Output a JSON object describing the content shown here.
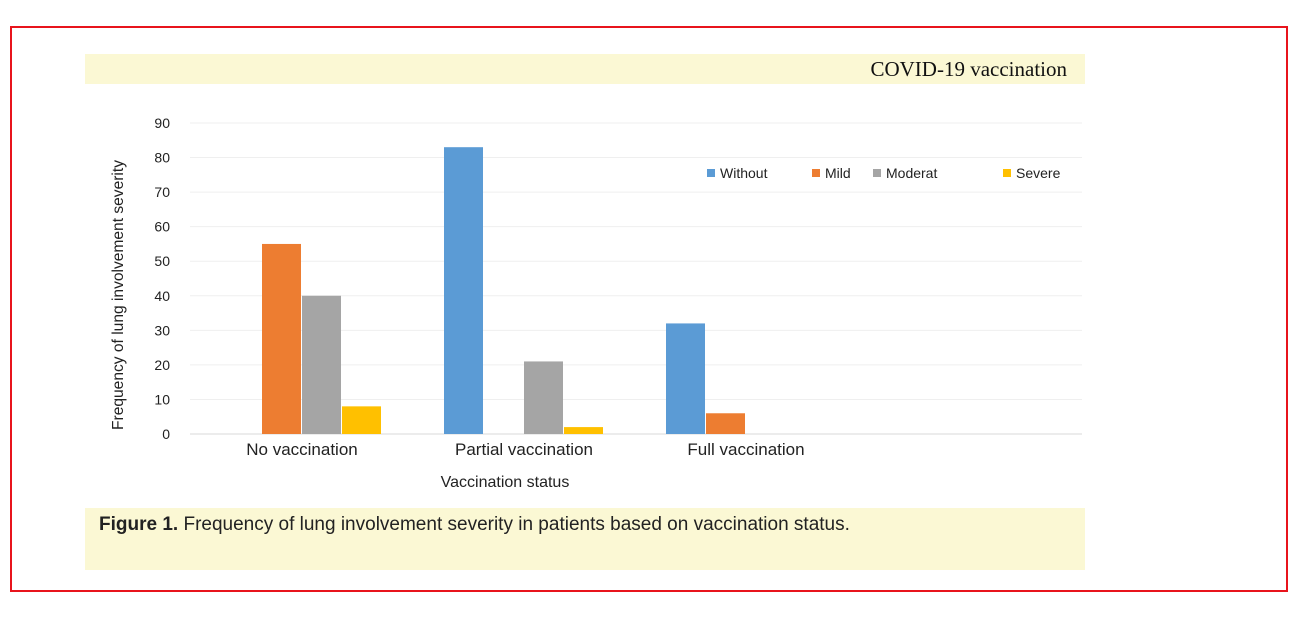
{
  "header": {
    "title": "COVID-19 vaccination"
  },
  "caption": {
    "label": "Figure 1.",
    "text": "Frequency of lung involvement severity in patients based on vaccination  status."
  },
  "colors": {
    "frame": "#e8141c",
    "band": "#fbf8d4"
  },
  "chart_data": {
    "type": "bar",
    "categories": [
      "No vaccination",
      "Partial vaccination",
      "Full vaccination"
    ],
    "series": [
      {
        "name": "Without",
        "color": "#5b9bd5",
        "values": [
          0,
          83,
          32
        ]
      },
      {
        "name": "Mild",
        "color": "#ed7d31",
        "values": [
          55,
          0,
          6
        ]
      },
      {
        "name": "Moderat",
        "color": "#a5a5a5",
        "values": [
          40,
          21,
          0
        ]
      },
      {
        "name": "Severe",
        "color": "#ffc000",
        "values": [
          8,
          2,
          0
        ]
      }
    ],
    "xlabel": "Vaccination status",
    "ylabel": "Frequency of lung involvement severity",
    "ylim": [
      0,
      90
    ],
    "yticks": [
      0,
      10,
      20,
      30,
      40,
      50,
      60,
      70,
      80,
      90
    ],
    "grid": true,
    "legend_position": "top-right"
  }
}
